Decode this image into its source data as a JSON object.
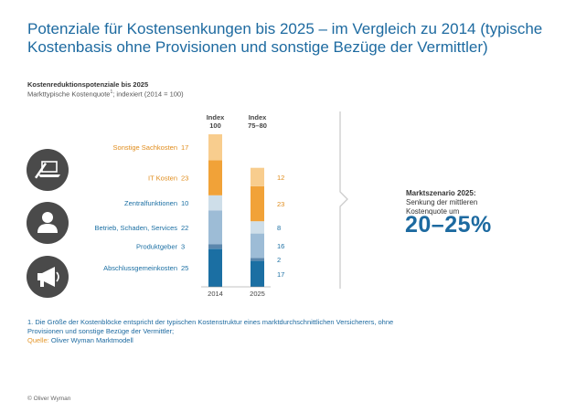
{
  "title": "Potenziale für Kostensenkungen bis 2025 – im Vergleich zu 2014 (typische Kostenbasis ohne Provisionen und sonstige Bezüge der Vermittler)",
  "subtitle": "Kostenreduktionspotenziale bis 2025",
  "subtitle2": "Markttypische Kostenquote",
  "subtitle2_sup": "1",
  "subtitle2_rest": "; indexiert (2014 = 100)",
  "chart_data": {
    "type": "bar",
    "stacked": true,
    "categories": [
      "2014",
      "2025"
    ],
    "column_headers": [
      {
        "line1": "Index",
        "line2": "100"
      },
      {
        "line1": "Index",
        "line2": "75–80"
      }
    ],
    "segments": [
      {
        "name": "Abschlussgemeinkosten",
        "values": [
          25,
          17
        ],
        "color": "#1b6fa3",
        "label_color": "#1b6fa3"
      },
      {
        "name": "Produktgeber",
        "values": [
          3,
          2
        ],
        "color": "#5b87ad",
        "label_color": "#1b6fa3"
      },
      {
        "name": "Betrieb, Schaden, Services",
        "values": [
          22,
          16
        ],
        "color": "#9dbcd6",
        "label_color": "#1b6fa3"
      },
      {
        "name": "Zentralfunktionen",
        "values": [
          10,
          8
        ],
        "color": "#cedee9",
        "label_color": "#1b6fa3"
      },
      {
        "name": "IT Kosten",
        "values": [
          23,
          23
        ],
        "color": "#f1a238",
        "label_color": "#e08c1c"
      },
      {
        "name": "Sonstige Sachkosten",
        "values": [
          17,
          12
        ],
        "color": "#f8cd8e",
        "label_color": "#e08c1c"
      }
    ]
  },
  "market": {
    "line1": "Marktszenario 2025:",
    "line2": "Senkung der mittleren Kostenquote um",
    "value": "20–25%"
  },
  "footnote": {
    "text": "1. Die Größe der Kostenblöcke entspricht der typischen Kostenstruktur eines marktdurchschnittlichen Versicherers, ohne Provisionen und sonstige Bezüge der Vermittler;",
    "source_label": "Quelle:",
    "source_value": "Oliver Wyman Marktmodell"
  },
  "copyright": "© Oliver Wyman",
  "icons": [
    "laptop-pen-icon",
    "person-icon",
    "megaphone-icon"
  ]
}
